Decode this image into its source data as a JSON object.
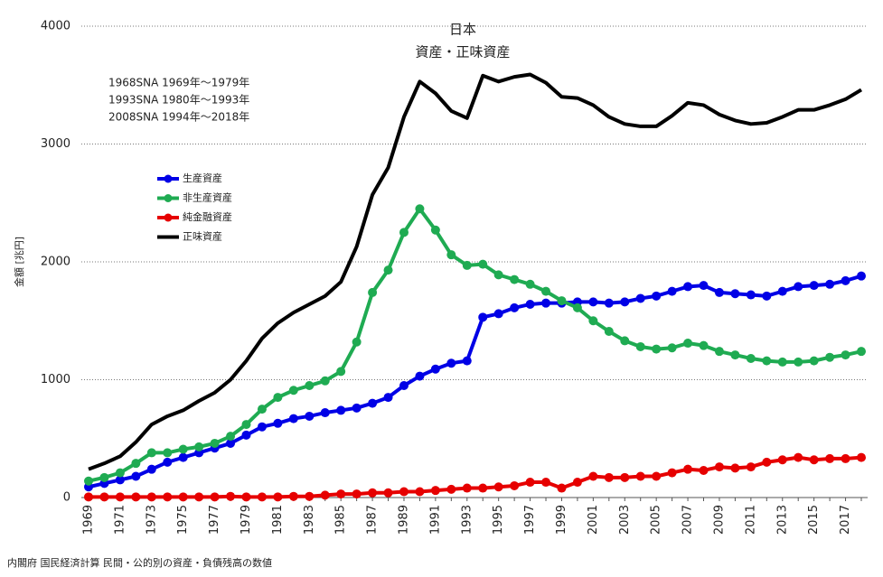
{
  "chart_data": {
    "type": "line",
    "title": "日本",
    "subtitle": "資産・正味資産",
    "annotations": [
      "1968SNA 1969年～1979年",
      "1993SNA 1980年～1993年",
      "2008SNA 1994年～2018年"
    ],
    "y_label": "金額 [兆円]",
    "source": "内閣府 国民経済計算 民間・公的別の資産・負債残高の数値",
    "categories": [
      "1969",
      null,
      "1971",
      null,
      "1973",
      null,
      "1975",
      null,
      "1977",
      null,
      "1979",
      null,
      "1981",
      null,
      "1983",
      null,
      "1985",
      null,
      "1987",
      null,
      "1989",
      null,
      "1991",
      null,
      "1993",
      null,
      "1995",
      null,
      "1997",
      null,
      "1999",
      null,
      "2001",
      null,
      "2003",
      null,
      "2005",
      null,
      "2007",
      null,
      "2009",
      null,
      "2011",
      null,
      "2013",
      null,
      "2015",
      null,
      "2017",
      null
    ],
    "ylim": [
      0,
      4000
    ],
    "yticks": [
      0,
      1000,
      2000,
      3000,
      4000
    ],
    "grid": true,
    "legend": "upper-left",
    "series": [
      {
        "name": "生産資産",
        "color": "#0000e6",
        "markers": true,
        "values": [
          90,
          120,
          150,
          180,
          240,
          300,
          340,
          380,
          420,
          460,
          530,
          600,
          630,
          670,
          690,
          720,
          740,
          760,
          800,
          850,
          950,
          1030,
          1090,
          1140,
          1160,
          1530,
          1560,
          1610,
          1640,
          1650,
          1650,
          1660,
          1660,
          1650,
          1660,
          1690,
          1710,
          1750,
          1790,
          1800,
          1740,
          1730,
          1720,
          1710,
          1750,
          1790,
          1800,
          1810,
          1840,
          1880
        ]
      },
      {
        "name": "非生産資産",
        "color": "#1fab52",
        "markers": true,
        "values": [
          140,
          170,
          210,
          290,
          380,
          380,
          410,
          430,
          460,
          520,
          620,
          750,
          850,
          910,
          950,
          990,
          1070,
          1320,
          1740,
          1930,
          2250,
          2450,
          2270,
          2060,
          1970,
          1980,
          1890,
          1850,
          1810,
          1750,
          1670,
          1610,
          1500,
          1410,
          1330,
          1280,
          1260,
          1270,
          1310,
          1290,
          1240,
          1210,
          1180,
          1160,
          1150,
          1150,
          1160,
          1190,
          1210,
          1240
        ]
      },
      {
        "name": "純金融資産",
        "color": "#e60000",
        "markers": true,
        "values": [
          5,
          5,
          5,
          5,
          5,
          5,
          5,
          5,
          5,
          10,
          5,
          5,
          5,
          10,
          10,
          20,
          30,
          30,
          40,
          40,
          50,
          50,
          60,
          70,
          80,
          80,
          90,
          100,
          130,
          130,
          80,
          130,
          180,
          170,
          170,
          180,
          180,
          210,
          240,
          230,
          260,
          250,
          260,
          300,
          320,
          340,
          320,
          330,
          330,
          340
        ]
      },
      {
        "name": "正味資産",
        "color": "#000000",
        "markers": false,
        "values": [
          240,
          290,
          350,
          470,
          620,
          690,
          740,
          820,
          890,
          1000,
          1160,
          1350,
          1480,
          1570,
          1640,
          1710,
          1830,
          2130,
          2570,
          2800,
          3230,
          3530,
          3430,
          3280,
          3220,
          3580,
          3530,
          3570,
          3590,
          3520,
          3400,
          3390,
          3330,
          3230,
          3170,
          3150,
          3150,
          3240,
          3350,
          3330,
          3250,
          3200,
          3170,
          3180,
          3230,
          3290,
          3290,
          3330,
          3380,
          3460
        ]
      }
    ]
  }
}
